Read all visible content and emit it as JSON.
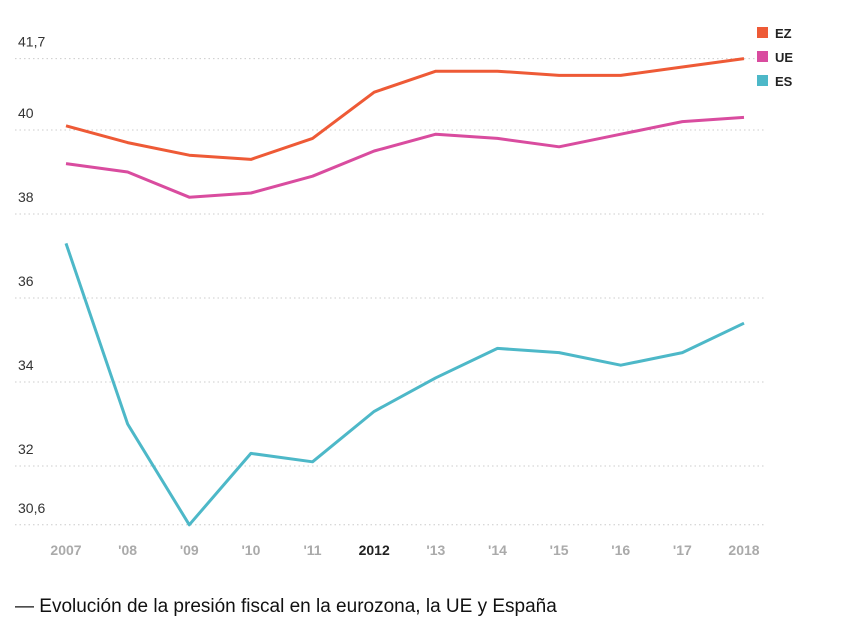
{
  "chart_data": {
    "type": "line",
    "title": "— Evolución de la presión fiscal en la eurozona, la UE y España",
    "xlabel": "",
    "ylabel": "",
    "x": [
      "2007",
      "'08",
      "'09",
      "'10",
      "'11",
      "2012",
      "'13",
      "'14",
      "'15",
      "'16",
      "'17",
      "2018"
    ],
    "highlight_x": [
      "2012"
    ],
    "y_ticks": [
      41.7,
      40,
      38,
      36,
      34,
      32,
      30.6
    ],
    "y_tick_labels": [
      "41,7",
      "40",
      "38",
      "36",
      "34",
      "32",
      "30,6"
    ],
    "ylim": [
      30.6,
      41.7
    ],
    "grid": true,
    "legend_position": "top-right",
    "series": [
      {
        "name": "EZ",
        "color": "#ee5a36",
        "values": [
          40.1,
          39.7,
          39.4,
          39.3,
          39.8,
          40.9,
          41.4,
          41.4,
          41.3,
          41.3,
          41.5,
          41.7
        ]
      },
      {
        "name": "UE",
        "color": "#d94c9f",
        "values": [
          39.2,
          39.0,
          38.4,
          38.5,
          38.9,
          39.5,
          39.9,
          39.8,
          39.6,
          39.9,
          40.2,
          40.3
        ]
      },
      {
        "name": "ES",
        "color": "#4db8c8",
        "values": [
          37.3,
          33.0,
          30.6,
          32.3,
          32.1,
          33.3,
          34.1,
          34.8,
          34.7,
          34.4,
          34.7,
          35.4
        ]
      }
    ]
  }
}
